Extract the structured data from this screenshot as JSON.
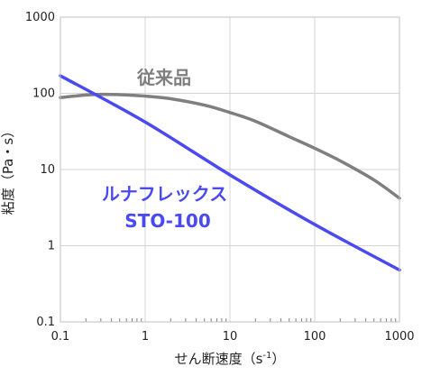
{
  "chart_data": {
    "type": "line",
    "x_scale": "log",
    "y_scale": "log",
    "xlim": [
      0.1,
      1000
    ],
    "ylim": [
      0.1,
      1000
    ],
    "x_ticks": [
      0.1,
      1,
      10,
      100,
      1000
    ],
    "x_tick_labels": [
      "0.1",
      "1",
      "10",
      "100",
      "1000"
    ],
    "y_ticks": [
      0.1,
      1,
      10,
      100,
      1000
    ],
    "y_tick_labels": [
      "0.1",
      "1",
      "10",
      "100",
      "1000"
    ],
    "xlabel": "せん断速度（s",
    "xlabel_sup": "-1",
    "xlabel_end": "）",
    "ylabel": "粘度（Pa・s）",
    "grid": true,
    "series": [
      {
        "name": "従来品",
        "color": "#7f7f7f",
        "x": [
          0.1,
          0.2,
          0.3,
          0.5,
          1,
          2,
          5,
          10,
          20,
          50,
          100,
          200,
          500,
          1000
        ],
        "y": [
          88,
          95,
          97,
          96,
          92,
          85,
          70,
          56,
          43,
          27,
          19,
          13,
          7.3,
          4.2
        ]
      },
      {
        "name": "ルナフレックス\nSTO-100",
        "label_lines": [
          "ルナフレックス",
          "STO-100"
        ],
        "color": "#4a4af0",
        "x": [
          0.1,
          1,
          10,
          100,
          1000
        ],
        "y": [
          170,
          42,
          8.5,
          1.9,
          0.48
        ]
      }
    ]
  }
}
